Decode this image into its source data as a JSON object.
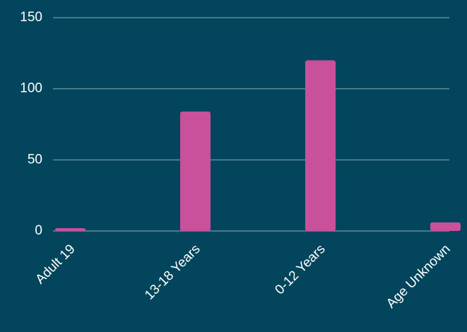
{
  "chart_data": {
    "type": "bar",
    "categories": [
      "Adult 19",
      "13-18 Years",
      "0-12 Years",
      "Age Unknown"
    ],
    "values": [
      2,
      84,
      120,
      6
    ],
    "color": "#c9509a",
    "ylim": [
      0,
      150
    ],
    "yticks": [
      0,
      50,
      100,
      150
    ],
    "grid": true
  }
}
